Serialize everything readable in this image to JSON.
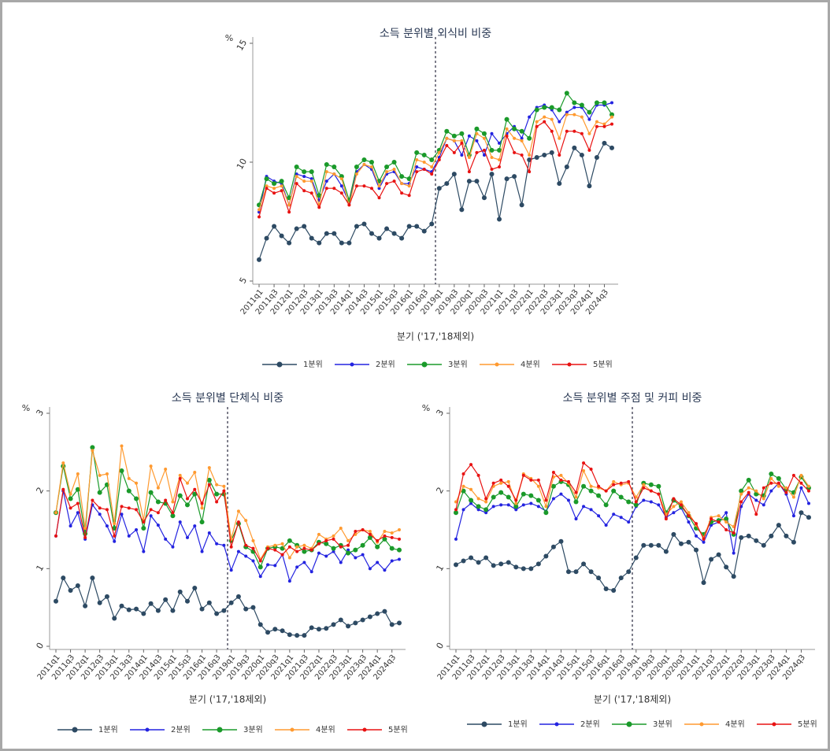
{
  "chart_data": [
    {
      "type": "line",
      "title": "소득 분위별 외식비 비중",
      "ylabel": "%",
      "xlabel": "분기 ('17,'18제외)",
      "categories": [
        "2011q1",
        null,
        "2011q3",
        null,
        "2012q1",
        null,
        "2012q3",
        null,
        "2013q1",
        null,
        "2013q3",
        null,
        "2014q1",
        null,
        "2014q3",
        null,
        "2015q1",
        null,
        "2015q3",
        null,
        "2016q1",
        null,
        "2016q3",
        null,
        "2019q1",
        null,
        "2019q3",
        null,
        "2020q1",
        null,
        "2020q3",
        null,
        "2021q1",
        null,
        "2021q3",
        null,
        "2022q1",
        null,
        "2022q3",
        null,
        "2023q1",
        null,
        "2023q3",
        null,
        "2024q1",
        null,
        "2024q3",
        null
      ],
      "ylim": [
        5,
        15
      ],
      "yticks": [
        5,
        10,
        15
      ],
      "series": [
        {
          "name": "1분위",
          "color": "#2d4a63",
          "values": [
            5.9,
            6.8,
            7.3,
            6.9,
            6.6,
            7.2,
            7.3,
            6.8,
            6.6,
            7.0,
            7.0,
            6.6,
            6.6,
            7.3,
            7.4,
            7.0,
            6.8,
            7.2,
            7.0,
            6.8,
            7.3,
            7.3,
            7.1,
            7.4,
            8.9,
            9.1,
            9.5,
            8.0,
            9.2,
            9.2,
            8.5,
            9.5,
            7.6,
            9.3,
            9.4,
            8.2,
            10.1,
            10.2,
            10.3,
            10.4,
            9.1,
            9.8,
            10.6,
            10.3,
            9.0,
            10.2,
            10.8,
            10.6
          ]
        },
        {
          "name": "2분위",
          "color": "#2323e0",
          "values": [
            7.9,
            9.4,
            9.2,
            9.1,
            8.2,
            9.5,
            9.4,
            9.3,
            8.4,
            9.2,
            9.5,
            9.0,
            8.3,
            9.6,
            9.9,
            9.7,
            8.9,
            9.5,
            9.6,
            9.1,
            9.1,
            9.8,
            9.7,
            9.6,
            10.2,
            11.0,
            10.9,
            10.3,
            11.1,
            10.9,
            10.3,
            11.2,
            10.8,
            11.2,
            11.5,
            11.0,
            11.9,
            12.3,
            12.4,
            12.2,
            11.7,
            12.1,
            12.3,
            12.3,
            11.8,
            12.4,
            12.4,
            12.5
          ]
        },
        {
          "name": "3분위",
          "color": "#1a9a2a",
          "values": [
            8.2,
            9.3,
            9.1,
            9.2,
            8.5,
            9.8,
            9.6,
            9.6,
            8.6,
            9.9,
            9.8,
            9.4,
            8.4,
            9.8,
            10.1,
            10.0,
            9.2,
            9.8,
            10.0,
            9.4,
            9.3,
            10.4,
            10.3,
            10.1,
            10.5,
            11.3,
            11.1,
            11.2,
            10.3,
            11.4,
            11.2,
            10.5,
            10.5,
            11.8,
            11.4,
            11.3,
            11.0,
            12.2,
            12.3,
            12.3,
            12.2,
            12.9,
            12.5,
            12.4,
            12.1,
            12.5,
            12.5,
            12.0
          ]
        },
        {
          "name": "4분위",
          "color": "#ff9a30",
          "values": [
            8.0,
            9.0,
            8.9,
            9.0,
            8.2,
            9.4,
            9.2,
            9.2,
            8.2,
            9.6,
            9.5,
            9.3,
            8.2,
            9.5,
            9.9,
            9.8,
            9.0,
            9.6,
            9.7,
            9.1,
            9.0,
            10.1,
            10.0,
            9.8,
            10.4,
            11.0,
            10.9,
            10.9,
            10.2,
            11.2,
            11.0,
            10.2,
            10.1,
            11.4,
            11.0,
            10.9,
            10.3,
            11.7,
            11.9,
            11.8,
            11.0,
            12.0,
            12.0,
            11.9,
            11.2,
            11.7,
            11.6,
            11.9
          ]
        },
        {
          "name": "5분위",
          "color": "#e81212",
          "values": [
            7.7,
            8.9,
            8.7,
            8.8,
            7.9,
            9.1,
            8.8,
            8.7,
            8.1,
            8.9,
            8.9,
            8.7,
            8.2,
            9.0,
            9.0,
            8.9,
            8.5,
            9.1,
            9.2,
            8.7,
            8.6,
            9.6,
            9.7,
            9.5,
            10.1,
            10.7,
            10.4,
            10.8,
            9.6,
            10.4,
            10.5,
            9.7,
            9.8,
            11.1,
            10.4,
            10.3,
            9.6,
            11.5,
            11.7,
            11.3,
            10.3,
            11.3,
            11.3,
            11.2,
            10.5,
            11.5,
            11.5,
            11.6
          ]
        }
      ]
    },
    {
      "type": "line",
      "title": "소득 분위별 단체식 비중",
      "ylabel": "%",
      "xlabel": "분기 ('17,'18제외)",
      "categories": [
        "2011q1",
        null,
        "2011q3",
        null,
        "2012q1",
        null,
        "2012q3",
        null,
        "2013q1",
        null,
        "2013q3",
        null,
        "2014q1",
        null,
        "2014q3",
        null,
        "2015q1",
        null,
        "2015q3",
        null,
        "2016q1",
        null,
        "2016q3",
        null,
        "2019q1",
        null,
        "2019q3",
        null,
        "2020q1",
        null,
        "2020q3",
        null,
        "2021q1",
        null,
        "2021q3",
        null,
        "2022q1",
        null,
        "2022q3",
        null,
        "2023q1",
        null,
        "2023q3",
        null,
        "2024q1",
        null,
        "2024q3",
        null
      ],
      "ylim": [
        0,
        3
      ],
      "yticks": [
        0,
        1,
        2,
        3
      ],
      "series": [
        {
          "name": "1분위",
          "color": "#2d4a63",
          "values": [
            0.58,
            0.88,
            0.72,
            0.78,
            0.52,
            0.88,
            0.56,
            0.64,
            0.36,
            0.52,
            0.47,
            0.48,
            0.42,
            0.55,
            0.46,
            0.6,
            0.46,
            0.7,
            0.58,
            0.75,
            0.48,
            0.56,
            0.42,
            0.46,
            0.56,
            0.64,
            0.48,
            0.5,
            0.28,
            0.18,
            0.22,
            0.2,
            0.15,
            0.14,
            0.14,
            0.24,
            0.22,
            0.23,
            0.28,
            0.34,
            0.26,
            0.3,
            0.34,
            0.38,
            0.42,
            0.45,
            0.28,
            0.3
          ]
        },
        {
          "name": "2분위",
          "color": "#2323e0",
          "values": [
            1.42,
            2.0,
            1.55,
            1.72,
            1.38,
            1.82,
            1.7,
            1.55,
            1.35,
            1.7,
            1.42,
            1.5,
            1.22,
            1.68,
            1.56,
            1.38,
            1.28,
            1.6,
            1.4,
            1.55,
            1.22,
            1.46,
            1.32,
            1.3,
            0.98,
            1.22,
            1.16,
            1.1,
            0.9,
            1.05,
            1.04,
            1.18,
            0.84,
            1.02,
            1.08,
            0.96,
            1.2,
            1.16,
            1.22,
            1.08,
            1.24,
            1.14,
            1.18,
            1.0,
            1.08,
            0.98,
            1.1,
            1.12
          ]
        },
        {
          "name": "3분위",
          "color": "#1a9a2a",
          "values": [
            1.72,
            2.32,
            1.9,
            2.02,
            1.45,
            2.56,
            1.98,
            2.08,
            1.52,
            2.26,
            2.0,
            1.9,
            1.52,
            1.98,
            1.86,
            1.84,
            1.68,
            1.94,
            1.82,
            1.96,
            1.6,
            2.14,
            1.96,
            1.96,
            1.36,
            1.58,
            1.28,
            1.22,
            1.02,
            1.26,
            1.28,
            1.26,
            1.36,
            1.3,
            1.22,
            1.24,
            1.34,
            1.32,
            1.26,
            1.3,
            1.2,
            1.24,
            1.3,
            1.4,
            1.28,
            1.38,
            1.26,
            1.24
          ]
        },
        {
          "name": "4분위",
          "color": "#ff9a30",
          "values": [
            1.72,
            2.36,
            1.96,
            2.22,
            1.52,
            2.52,
            2.2,
            2.22,
            1.58,
            2.58,
            2.16,
            2.1,
            1.62,
            2.32,
            2.04,
            2.28,
            1.86,
            2.2,
            2.1,
            2.24,
            1.78,
            2.3,
            2.08,
            2.06,
            1.38,
            1.74,
            1.62,
            1.36,
            1.12,
            1.28,
            1.3,
            1.32,
            1.14,
            1.28,
            1.3,
            1.26,
            1.44,
            1.38,
            1.42,
            1.52,
            1.36,
            1.44,
            1.5,
            1.48,
            1.34,
            1.48,
            1.46,
            1.5
          ]
        },
        {
          "name": "5분위",
          "color": "#e81212",
          "values": [
            1.42,
            2.02,
            1.78,
            1.84,
            1.4,
            1.88,
            1.78,
            1.76,
            1.42,
            1.8,
            1.78,
            1.76,
            1.6,
            1.76,
            1.72,
            1.88,
            1.72,
            2.16,
            1.9,
            2.02,
            1.84,
            2.08,
            1.86,
            2.0,
            1.28,
            1.6,
            1.3,
            1.26,
            1.1,
            1.26,
            1.24,
            1.18,
            1.28,
            1.22,
            1.26,
            1.24,
            1.32,
            1.36,
            1.38,
            1.28,
            1.3,
            1.48,
            1.5,
            1.44,
            1.36,
            1.42,
            1.4,
            1.38
          ]
        }
      ]
    },
    {
      "type": "line",
      "title": "소득 분위별 주점 및 커피 비중",
      "ylabel": "%",
      "xlabel": "분기 ('17,'18제외)",
      "categories": [
        "2011q1",
        null,
        "2011q3",
        null,
        "2012q1",
        null,
        "2012q3",
        null,
        "2013q1",
        null,
        "2013q3",
        null,
        "2014q1",
        null,
        "2014q3",
        null,
        "2015q1",
        null,
        "2015q3",
        null,
        "2016q1",
        null,
        "2016q3",
        null,
        "2019q1",
        null,
        "2019q3",
        null,
        "2020q1",
        null,
        "2020q3",
        null,
        "2021q1",
        null,
        "2021q3",
        null,
        "2022q1",
        null,
        "2022q3",
        null,
        "2023q1",
        null,
        "2023q3",
        null,
        "2024q1",
        null,
        "2024q3",
        null
      ],
      "ylim": [
        0,
        3
      ],
      "yticks": [
        0,
        1,
        2,
        3
      ],
      "series": [
        {
          "name": "1분위",
          "color": "#2d4a63",
          "values": [
            1.05,
            1.1,
            1.14,
            1.08,
            1.14,
            1.04,
            1.06,
            1.08,
            1.02,
            1.0,
            1.0,
            1.06,
            1.16,
            1.28,
            1.35,
            0.96,
            0.96,
            1.06,
            0.96,
            0.88,
            0.74,
            0.72,
            0.88,
            0.96,
            1.14,
            1.3,
            1.3,
            1.3,
            1.22,
            1.44,
            1.32,
            1.34,
            1.24,
            0.82,
            1.12,
            1.18,
            1.02,
            0.9,
            1.4,
            1.42,
            1.36,
            1.3,
            1.42,
            1.56,
            1.42,
            1.34,
            1.72,
            1.66
          ]
        },
        {
          "name": "2분위",
          "color": "#2323e0",
          "values": [
            1.38,
            1.76,
            1.84,
            1.76,
            1.72,
            1.8,
            1.82,
            1.82,
            1.76,
            1.82,
            1.84,
            1.8,
            1.74,
            1.9,
            1.96,
            1.88,
            1.64,
            1.8,
            1.76,
            1.68,
            1.56,
            1.7,
            1.66,
            1.6,
            1.8,
            1.88,
            1.86,
            1.82,
            1.66,
            1.72,
            1.78,
            1.6,
            1.42,
            1.34,
            1.56,
            1.6,
            1.72,
            1.2,
            1.8,
            1.96,
            1.88,
            1.82,
            2.0,
            2.1,
            1.96,
            1.68,
            2.04,
            1.84
          ]
        },
        {
          "name": "3분위",
          "color": "#1a9a2a",
          "values": [
            1.72,
            2.0,
            1.88,
            1.8,
            1.76,
            1.92,
            1.98,
            1.92,
            1.8,
            1.96,
            1.94,
            1.88,
            1.72,
            2.06,
            2.12,
            2.08,
            1.86,
            2.06,
            2.0,
            1.94,
            1.82,
            2.0,
            1.92,
            1.86,
            1.82,
            2.1,
            2.08,
            2.06,
            1.72,
            1.88,
            1.8,
            1.68,
            1.52,
            1.44,
            1.6,
            1.62,
            1.64,
            1.44,
            2.0,
            2.14,
            1.96,
            1.94,
            2.22,
            2.16,
            2.02,
            1.98,
            2.18,
            2.04
          ]
        },
        {
          "name": "4분위",
          "color": "#ff9a30",
          "values": [
            1.86,
            2.06,
            2.02,
            1.9,
            1.86,
            2.06,
            2.1,
            2.12,
            1.84,
            2.22,
            2.16,
            2.06,
            1.8,
            2.18,
            2.2,
            2.1,
            1.92,
            2.26,
            2.06,
            2.04,
            2.0,
            2.12,
            2.08,
            2.1,
            1.92,
            2.08,
            2.0,
            1.96,
            1.7,
            1.8,
            1.86,
            1.72,
            1.56,
            1.4,
            1.66,
            1.68,
            1.6,
            1.54,
            1.96,
            2.04,
            2.0,
            1.9,
            2.16,
            2.06,
            2.04,
            1.92,
            2.2,
            2.06
          ]
        },
        {
          "name": "5분위",
          "color": "#e81212",
          "values": [
            1.76,
            2.22,
            2.34,
            2.2,
            1.9,
            2.1,
            2.14,
            2.06,
            1.88,
            2.2,
            2.14,
            2.14,
            1.88,
            2.24,
            2.14,
            2.12,
            1.98,
            2.36,
            2.28,
            2.06,
            2.0,
            2.08,
            2.1,
            2.12,
            1.86,
            2.04,
            2.0,
            1.96,
            1.64,
            1.9,
            1.82,
            1.68,
            1.58,
            1.38,
            1.64,
            1.6,
            1.5,
            1.46,
            1.86,
            1.98,
            1.7,
            2.04,
            2.1,
            2.1,
            1.98,
            2.2,
            2.1,
            2.0
          ]
        }
      ]
    }
  ]
}
